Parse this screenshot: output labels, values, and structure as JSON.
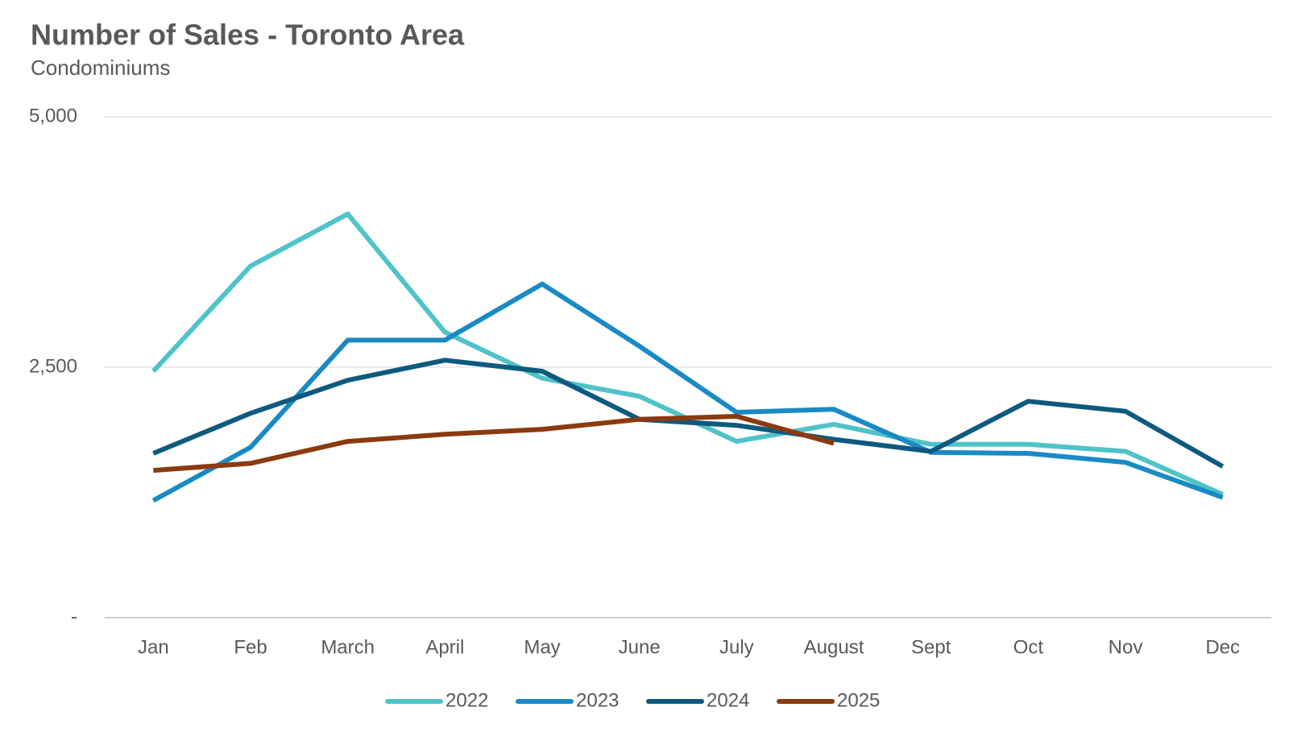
{
  "chart_data": {
    "type": "line",
    "title": "Number of Sales - Toronto Area",
    "subtitle": "Condominiums",
    "categories": [
      "Jan",
      "Feb",
      "March",
      "April",
      "May",
      "June",
      "July",
      "August",
      "Sept",
      "Oct",
      "Nov",
      "Dec"
    ],
    "series": [
      {
        "name": "2022",
        "color": "#4fc3c9",
        "values": [
          2460,
          3510,
          4030,
          2850,
          2390,
          2210,
          1760,
          1930,
          1730,
          1730,
          1660,
          1230
        ]
      },
      {
        "name": "2023",
        "color": "#1a8ac4",
        "values": [
          1170,
          1700,
          2770,
          2770,
          3330,
          2710,
          2050,
          2080,
          1650,
          1640,
          1550,
          1200
        ]
      },
      {
        "name": "2024",
        "color": "#0e5a7e",
        "values": [
          1640,
          2040,
          2370,
          2570,
          2460,
          1980,
          1920,
          1780,
          1660,
          2160,
          2060,
          1510
        ]
      },
      {
        "name": "2025",
        "color": "#8b3a0f",
        "values": [
          1470,
          1540,
          1760,
          1830,
          1880,
          1980,
          2010,
          1740,
          null,
          null,
          null,
          null
        ]
      }
    ],
    "ylim": [
      0,
      5000
    ],
    "yticks": [
      {
        "value": 0,
        "label": "-"
      },
      {
        "value": 2500,
        "label": "2,500"
      },
      {
        "value": 5000,
        "label": "5,000"
      }
    ],
    "grid": true,
    "legend": "bottom"
  }
}
